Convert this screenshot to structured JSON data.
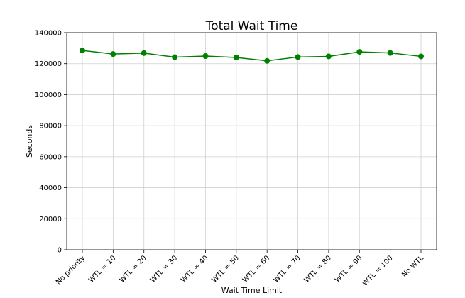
{
  "chart_data": {
    "type": "line",
    "title": "Total Wait Time",
    "xlabel": "Wait Time Limit",
    "ylabel": "Seconds",
    "categories": [
      "No priority",
      "WTL = 10",
      "WTL = 20",
      "WTL = 30",
      "WTL = 40",
      "WTL = 50",
      "WTL = 60",
      "WTL = 70",
      "WTL = 80",
      "WTL = 90",
      "WTL = 100",
      "No WTL"
    ],
    "series": [
      {
        "values": [
          128500,
          126200,
          126800,
          124200,
          124900,
          124000,
          121800,
          124300,
          124700,
          127600,
          126900,
          124700
        ],
        "color": "#008000"
      }
    ],
    "ylim": [
      0,
      140000
    ],
    "yticks": [
      0,
      20000,
      40000,
      60000,
      80000,
      100000,
      120000,
      140000
    ],
    "grid": true,
    "legend": "none"
  }
}
